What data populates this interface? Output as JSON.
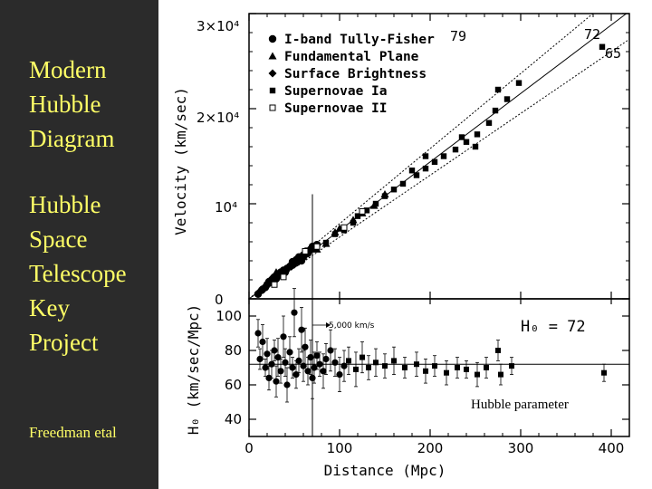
{
  "slide": {
    "title_lines": [
      "Modern",
      "Hubble",
      "Diagram"
    ],
    "subtitle_lines": [
      "Hubble",
      "Space",
      "Telescope",
      "Key",
      "Project"
    ],
    "credit": "Freedman etal"
  },
  "colors": {
    "left_panel": "#2b2b2b",
    "slide_text": "#ffff66",
    "figure_bg": "#ffffff",
    "ink": "#000000"
  },
  "chart_data": [
    {
      "type": "scatter",
      "panel": "top",
      "xlabel": "",
      "ylabel": "Velocity (km/sec)",
      "ylim": [
        0,
        30000
      ],
      "xlim": [
        0,
        420
      ],
      "y_ticks": [
        {
          "value": 0,
          "label": "0"
        },
        {
          "value": 10000,
          "label": "10⁴"
        },
        {
          "value": 20000,
          "label": "2×10⁴"
        },
        {
          "value": 30000,
          "label": "3×10⁴"
        }
      ],
      "legend": [
        {
          "name": "I-band Tully-Fisher",
          "marker": "circle"
        },
        {
          "name": "Fundamental Plane",
          "marker": "triangle"
        },
        {
          "name": "Surface Brightness",
          "marker": "diamond"
        },
        {
          "name": "Supernovae Ia",
          "marker": "square"
        },
        {
          "name": "Supernovae II",
          "marker": "open-square"
        }
      ],
      "fit_lines": [
        {
          "label": "79",
          "slope": 79
        },
        {
          "label": "72",
          "slope": 72
        },
        {
          "label": "65",
          "slope": 65
        }
      ],
      "series": [
        {
          "name": "I-band Tully-Fisher",
          "points": [
            [
              10,
              500
            ],
            [
              14,
              900
            ],
            [
              18,
              1200
            ],
            [
              20,
              1500
            ],
            [
              22,
              1800
            ],
            [
              25,
              2000
            ],
            [
              28,
              2300
            ],
            [
              30,
              2100
            ],
            [
              32,
              2600
            ],
            [
              35,
              2800
            ],
            [
              38,
              3000
            ],
            [
              40,
              2800
            ],
            [
              42,
              3200
            ],
            [
              45,
              3400
            ],
            [
              48,
              3900
            ],
            [
              50,
              3700
            ],
            [
              52,
              4100
            ],
            [
              55,
              4400
            ],
            [
              58,
              4000
            ],
            [
              60,
              4600
            ],
            [
              63,
              5000
            ],
            [
              65,
              4800
            ],
            [
              68,
              5200
            ],
            [
              70,
              5500
            ],
            [
              72,
              5300
            ],
            [
              75,
              5700
            ],
            [
              15,
              1000
            ],
            [
              27,
              2200
            ],
            [
              33,
              2500
            ],
            [
              47,
              3500
            ]
          ]
        },
        {
          "name": "Fundamental Plane",
          "points": [
            [
              30,
              2800
            ],
            [
              45,
              3600
            ],
            [
              62,
              4700
            ],
            [
              75,
              5200
            ],
            [
              85,
              5800
            ],
            [
              95,
              7000
            ],
            [
              100,
              7400
            ],
            [
              115,
              8300
            ],
            [
              125,
              9000
            ],
            [
              138,
              9800
            ],
            [
              150,
              11000
            ]
          ]
        },
        {
          "name": "Surface Brightness",
          "points": [
            [
              10,
              600
            ],
            [
              15,
              1000
            ],
            [
              20,
              1400
            ],
            [
              25,
              1700
            ],
            [
              30,
              2100
            ],
            [
              35,
              2500
            ],
            [
              60,
              4300
            ],
            [
              55,
              3900
            ]
          ]
        },
        {
          "name": "Supernovae Ia",
          "points": [
            [
              85,
              5900
            ],
            [
              95,
              6800
            ],
            [
              105,
              7200
            ],
            [
              115,
              8000
            ],
            [
              120,
              8700
            ],
            [
              130,
              9300
            ],
            [
              140,
              10000
            ],
            [
              150,
              10800
            ],
            [
              160,
              11500
            ],
            [
              170,
              12100
            ],
            [
              185,
              13000
            ],
            [
              195,
              13700
            ],
            [
              205,
              14400
            ],
            [
              215,
              15000
            ],
            [
              228,
              15700
            ],
            [
              240,
              16500
            ],
            [
              252,
              17300
            ],
            [
              265,
              18500
            ],
            [
              272,
              19800
            ],
            [
              285,
              21000
            ],
            [
              298,
              22700
            ],
            [
              250,
              16000
            ],
            [
              235,
              17000
            ],
            [
              195,
              15000
            ],
            [
              180,
              13500
            ],
            [
              275,
              22000
            ],
            [
              390,
              26500
            ]
          ]
        },
        {
          "name": "Supernovae II",
          "points": [
            [
              28,
              1500
            ],
            [
              38,
              2300
            ],
            [
              62,
              5000
            ],
            [
              75,
              5500
            ],
            [
              105,
              7500
            ],
            [
              125,
              9200
            ]
          ]
        }
      ]
    },
    {
      "type": "scatter",
      "panel": "bottom",
      "xlabel": "Distance (Mpc)",
      "ylabel": "H₀ (km/sec/Mpc)",
      "xlim": [
        0,
        420
      ],
      "ylim": [
        30,
        110
      ],
      "x_ticks": [
        0,
        100,
        200,
        300,
        400
      ],
      "y_ticks": [
        40,
        60,
        80,
        100
      ],
      "reference_line": 72,
      "label": "H₀ = 72",
      "marker_label": "5,000 km/s",
      "marker_distance": 70,
      "annotation": "Hubble parameter",
      "points": [
        {
          "x": 10,
          "y": 90,
          "err": 8
        },
        {
          "x": 12,
          "y": 75,
          "err": 6
        },
        {
          "x": 15,
          "y": 85,
          "err": 10
        },
        {
          "x": 18,
          "y": 70,
          "err": 5
        },
        {
          "x": 20,
          "y": 78,
          "err": 9
        },
        {
          "x": 22,
          "y": 64,
          "err": 7
        },
        {
          "x": 25,
          "y": 72,
          "err": 8
        },
        {
          "x": 28,
          "y": 80,
          "err": 6
        },
        {
          "x": 30,
          "y": 62,
          "err": 9
        },
        {
          "x": 32,
          "y": 76,
          "err": 11
        },
        {
          "x": 35,
          "y": 68,
          "err": 7
        },
        {
          "x": 38,
          "y": 88,
          "err": 12
        },
        {
          "x": 40,
          "y": 73,
          "err": 8
        },
        {
          "x": 42,
          "y": 60,
          "err": 10
        },
        {
          "x": 45,
          "y": 79,
          "err": 9
        },
        {
          "x": 48,
          "y": 70,
          "err": 6
        },
        {
          "x": 50,
          "y": 102,
          "err": 14
        },
        {
          "x": 52,
          "y": 66,
          "err": 8
        },
        {
          "x": 55,
          "y": 74,
          "err": 7
        },
        {
          "x": 58,
          "y": 92,
          "err": 13
        },
        {
          "x": 60,
          "y": 71,
          "err": 9
        },
        {
          "x": 62,
          "y": 82,
          "err": 11
        },
        {
          "x": 65,
          "y": 68,
          "err": 8
        },
        {
          "x": 68,
          "y": 76,
          "err": 10
        },
        {
          "x": 70,
          "y": 64,
          "err": 12
        },
        {
          "x": 72,
          "y": 70,
          "err": 9
        },
        {
          "x": 75,
          "y": 77,
          "err": 8
        },
        {
          "x": 78,
          "y": 72,
          "err": 7
        },
        {
          "x": 82,
          "y": 68,
          "err": 10
        },
        {
          "x": 85,
          "y": 75,
          "err": 9
        },
        {
          "x": 90,
          "y": 80,
          "err": 12
        },
        {
          "x": 95,
          "y": 73,
          "err": 8
        },
        {
          "x": 100,
          "y": 66,
          "err": 10
        },
        {
          "x": 105,
          "y": 71,
          "err": 9
        },
        {
          "x": 110,
          "y": 74,
          "err": 8
        },
        {
          "x": 118,
          "y": 69,
          "err": 10
        },
        {
          "x": 125,
          "y": 76,
          "err": 9
        },
        {
          "x": 132,
          "y": 70,
          "err": 7
        },
        {
          "x": 140,
          "y": 73,
          "err": 8
        },
        {
          "x": 150,
          "y": 71,
          "err": 7
        },
        {
          "x": 160,
          "y": 74,
          "err": 8
        },
        {
          "x": 172,
          "y": 70,
          "err": 6
        },
        {
          "x": 185,
          "y": 72,
          "err": 7
        },
        {
          "x": 195,
          "y": 68,
          "err": 7
        },
        {
          "x": 205,
          "y": 71,
          "err": 6
        },
        {
          "x": 218,
          "y": 67,
          "err": 7
        },
        {
          "x": 230,
          "y": 70,
          "err": 6
        },
        {
          "x": 240,
          "y": 69,
          "err": 5
        },
        {
          "x": 252,
          "y": 66,
          "err": 7
        },
        {
          "x": 262,
          "y": 70,
          "err": 6
        },
        {
          "x": 275,
          "y": 80,
          "err": 6
        },
        {
          "x": 278,
          "y": 66,
          "err": 6
        },
        {
          "x": 290,
          "y": 71,
          "err": 5
        },
        {
          "x": 392,
          "y": 67,
          "err": 5
        }
      ]
    }
  ]
}
